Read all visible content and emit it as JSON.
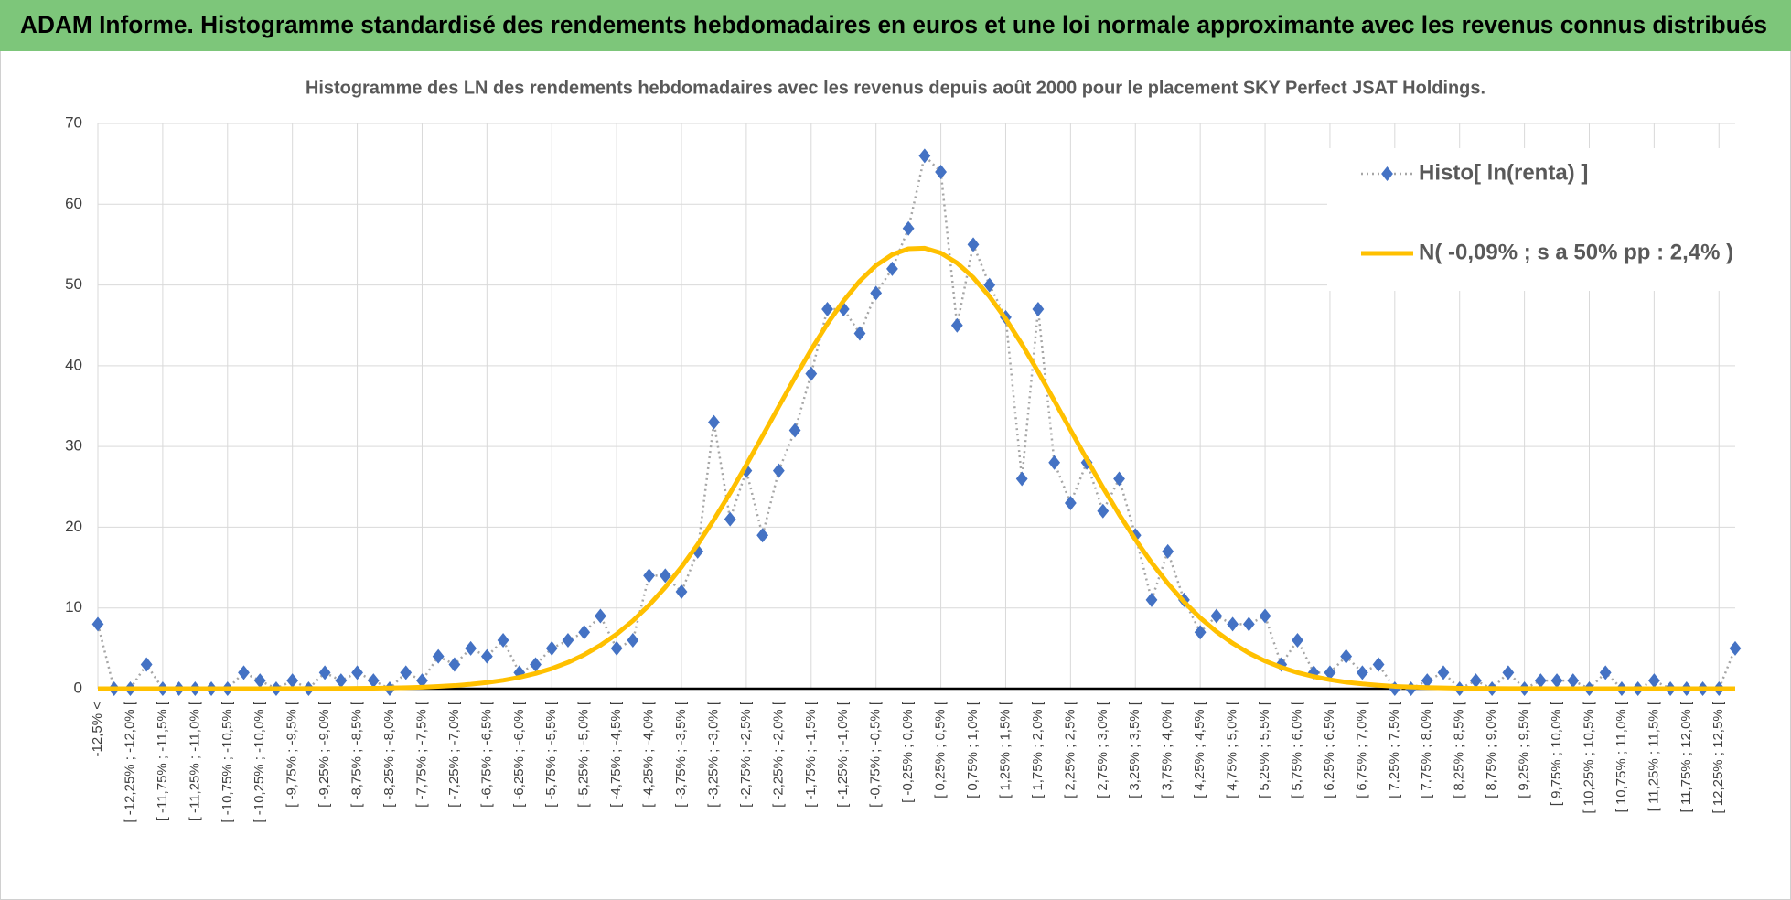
{
  "chart_data": {
    "type": "line",
    "header": "ADAM Informe. Histogramme standardisé des rendements hebdomadaires en euros et une loi normale approximante avec les revenus connus distribués",
    "title": "Histogramme des LN des rendements hebdomadaires avec les revenus depuis août 2000 pour le placement SKY Perfect JSAT Holdings.",
    "categories": [
      "-12,5% <",
      null,
      "[ -12,25% ; -12,0% [",
      null,
      "[ -11,75% ; -11,5% [",
      null,
      "[ -11,25% ; -11,0% [",
      null,
      "[ -10,75% ; -10,5% [",
      null,
      "[ -10,25% ; -10,0% [",
      null,
      "[ -9,75% ; -9,5% [",
      null,
      "[ -9,25% ; -9,0% [",
      null,
      "[ -8,75% ; -8,5% [",
      null,
      "[ -8,25% ; -8,0% [",
      null,
      "[ -7,75% ; -7,5% [",
      null,
      "[ -7,25% ; -7,0% [",
      null,
      "[ -6,75% ; -6,5% [",
      null,
      "[ -6,25% ; -6,0% [",
      null,
      "[ -5,75% ; -5,5% [",
      null,
      "[ -5,25% ; -5,0% [",
      null,
      "[ -4,75% ; -4,5% [",
      null,
      "[ -4,25% ; -4,0% [",
      null,
      "[ -3,75% ; -3,5% [",
      null,
      "[ -3,25% ; -3,0% [",
      null,
      "[ -2,75% ; -2,5% [",
      null,
      "[ -2,25% ; -2,0% [",
      null,
      "[ -1,75% ; -1,5% [",
      null,
      "[ -1,25% ; -1,0% [",
      null,
      "[ -0,75% ; -0,5% [",
      null,
      "[ -0,25% ; 0,0% [",
      null,
      "[ 0,25% ; 0,5% [",
      null,
      "[ 0,75% ; 1,0% [",
      null,
      "[ 1,25% ; 1,5% [",
      null,
      "[ 1,75% ; 2,0% [",
      null,
      "[ 2,25% ; 2,5% [",
      null,
      "[ 2,75% ; 3,0% [",
      null,
      "[ 3,25% ; 3,5% [",
      null,
      "[ 3,75% ; 4,0% [",
      null,
      "[ 4,25% ; 4,5% [",
      null,
      "[ 4,75% ; 5,0% [",
      null,
      "[ 5,25% ; 5,5% [",
      null,
      "[ 5,75% ; 6,0% [",
      null,
      "[ 6,25% ; 6,5% [",
      null,
      "[ 6,75% ; 7,0% [",
      null,
      "[ 7,25% ; 7,5% [",
      null,
      "[ 7,75% ; 8,0% [",
      null,
      "[ 8,25% ; 8,5% [",
      null,
      "[ 8,75% ; 9,0% [",
      null,
      "[ 9,25% ; 9,5% [",
      null,
      "[ 9,75% ; 10,0% [",
      null,
      "[ 10,25% ; 10,5% [",
      null,
      "[ 10,75% ; 11,0% [",
      null,
      "[ 11,25% ; 11,5% [",
      null,
      "[ 11,75% ; 12,0% [",
      null,
      "[ 12,25% ; 12,5% [",
      null
    ],
    "series": [
      {
        "name": "Histo[ ln(renta) ]",
        "color": "#4472c4",
        "line_color": "#a6a6a6",
        "marker": "diamond",
        "values": [
          8,
          0,
          0,
          3,
          0,
          0,
          0,
          0,
          0,
          2,
          1,
          0,
          1,
          0,
          2,
          1,
          2,
          1,
          0,
          2,
          1,
          4,
          3,
          5,
          4,
          6,
          2,
          3,
          5,
          6,
          7,
          9,
          5,
          6,
          14,
          14,
          12,
          17,
          33,
          21,
          27,
          19,
          27,
          32,
          39,
          47,
          47,
          44,
          49,
          52,
          57,
          66,
          64,
          45,
          55,
          50,
          46,
          26,
          47,
          28,
          23,
          28,
          22,
          26,
          19,
          11,
          17,
          11,
          7,
          9,
          8,
          8,
          9,
          3,
          6,
          2,
          2,
          4,
          2,
          3,
          0,
          0,
          1,
          2,
          0,
          1,
          0,
          2,
          0,
          1,
          1,
          1,
          0,
          2,
          0,
          0,
          1,
          0,
          0,
          0,
          0,
          5
        ]
      },
      {
        "name": "N( -0,09% ; s a 50% pp : 2,4% )",
        "color": "#ffc000",
        "marker": "none",
        "values": [
          0,
          0,
          0,
          0,
          0,
          0,
          0,
          0,
          0,
          0,
          0,
          0,
          0.01,
          0.01,
          0.02,
          0.03,
          0.04,
          0.06,
          0.09,
          0.13,
          0.19,
          0.28,
          0.39,
          0.55,
          0.76,
          1.04,
          1.41,
          1.89,
          2.5,
          3.26,
          4.21,
          5.37,
          6.76,
          8.41,
          10.34,
          12.56,
          15.07,
          17.87,
          20.93,
          24.23,
          27.71,
          31.3,
          34.94,
          38.53,
          41.98,
          45.19,
          48.05,
          50.49,
          52.42,
          53.76,
          54.48,
          54.55,
          53.96,
          52.73,
          50.92,
          48.58,
          45.8,
          42.66,
          39.25,
          35.67,
          32.03,
          28.42,
          24.91,
          21.58,
          18.47,
          15.61,
          13.04,
          10.76,
          8.77,
          7.07,
          5.63,
          4.42,
          3.43,
          2.64,
          2,
          1.5,
          1.11,
          0.81,
          0.59,
          0.42,
          0.29,
          0.21,
          0.14,
          0.1,
          0.06,
          0.04,
          0.03,
          0.02,
          0.01,
          0.01,
          0,
          0,
          0,
          0,
          0,
          0,
          0,
          0,
          0,
          0,
          0,
          0
        ]
      }
    ],
    "ylim": [
      0,
      70
    ],
    "yticks": [
      0,
      10,
      20,
      30,
      40,
      50,
      60,
      70
    ],
    "grid": true,
    "legend": "upper right"
  }
}
